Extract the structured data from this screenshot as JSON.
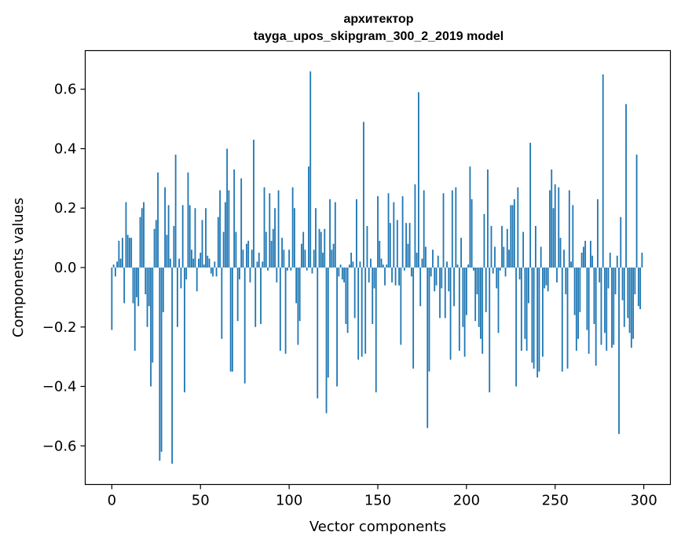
{
  "chart_data": {
    "type": "bar",
    "title_line1": "архитектор",
    "title_line2": "tayga_upos_skipgram_300_2_2019 model",
    "xlabel": "Vector components",
    "ylabel": "Components values",
    "xlim": [
      -15,
      315
    ],
    "ylim": [
      -0.73,
      0.73
    ],
    "grid": false,
    "bar_color": "#1f77b4",
    "xticks": [
      0,
      50,
      100,
      150,
      200,
      250,
      300
    ],
    "xtick_labels": [
      "0",
      "50",
      "100",
      "150",
      "200",
      "250",
      "300"
    ],
    "yticks": [
      -0.6,
      -0.4,
      -0.2,
      0.0,
      0.2,
      0.4,
      0.6
    ],
    "ytick_labels": [
      "−0.6",
      "−0.4",
      "−0.2",
      "0.0",
      "0.2",
      "0.4",
      "0.6"
    ],
    "values": [
      -0.21,
      0.01,
      -0.03,
      0.02,
      0.09,
      0.03,
      0.1,
      -0.12,
      0.22,
      0.11,
      0.1,
      0.1,
      -0.12,
      -0.28,
      -0.1,
      -0.13,
      0.17,
      0.2,
      0.22,
      -0.09,
      -0.2,
      -0.13,
      -0.4,
      -0.32,
      0.13,
      0.16,
      0.32,
      -0.65,
      -0.62,
      -0.15,
      0.27,
      0.11,
      0.21,
      0.03,
      -0.66,
      0.14,
      0.38,
      -0.2,
      0.03,
      -0.07,
      0.21,
      -0.42,
      -0.04,
      0.32,
      0.21,
      0.06,
      0.03,
      0.2,
      -0.08,
      0.03,
      0.05,
      0.16,
      0.01,
      0.2,
      0.04,
      0.03,
      -0.02,
      -0.03,
      0.02,
      -0.03,
      0.17,
      0.26,
      -0.24,
      0.12,
      0.22,
      0.4,
      0.26,
      -0.35,
      -0.35,
      0.33,
      0.12,
      -0.18,
      -0.04,
      0.3,
      0.06,
      -0.39,
      0.08,
      0.09,
      -0.05,
      0.06,
      0.43,
      -0.2,
      0.02,
      0.05,
      -0.19,
      0.02,
      0.27,
      0.12,
      -0.01,
      0.25,
      0.09,
      0.13,
      0.2,
      -0.05,
      0.26,
      -0.28,
      0.1,
      0.06,
      -0.29,
      -0.01,
      0.06,
      -0.01,
      0.27,
      0.2,
      -0.12,
      -0.26,
      -0.18,
      0.08,
      0.12,
      0.06,
      -0.01,
      0.34,
      0.66,
      -0.02,
      0.06,
      0.2,
      -0.44,
      0.13,
      0.12,
      0.05,
      0.13,
      -0.49,
      -0.37,
      0.23,
      0.06,
      0.08,
      0.22,
      -0.4,
      -0.03,
      0.01,
      -0.04,
      -0.05,
      -0.19,
      -0.22,
      0.01,
      0.05,
      0.02,
      -0.17,
      0.23,
      -0.31,
      0.02,
      -0.3,
      0.49,
      -0.29,
      0.14,
      -0.05,
      0.03,
      -0.19,
      -0.07,
      -0.42,
      0.24,
      0.09,
      0.03,
      0.01,
      -0.06,
      0.01,
      0.25,
      0.15,
      -0.05,
      0.22,
      -0.06,
      0.16,
      -0.06,
      -0.26,
      0.24,
      -0.01,
      0.15,
      0.08,
      0.15,
      -0.03,
      -0.34,
      0.28,
      0.05,
      0.59,
      -0.13,
      0.03,
      0.26,
      0.07,
      -0.54,
      -0.35,
      -0.03,
      0.06,
      -0.08,
      -0.06,
      0.04,
      -0.17,
      -0.07,
      0.25,
      -0.17,
      0.02,
      -0.08,
      -0.31,
      0.26,
      -0.13,
      0.27,
      0.01,
      -0.28,
      0.1,
      -0.2,
      -0.3,
      -0.16,
      0.01,
      0.34,
      0.23,
      -0.01,
      -0.18,
      -0.09,
      -0.2,
      -0.24,
      -0.29,
      0.18,
      -0.15,
      0.33,
      -0.42,
      0.14,
      -0.02,
      0.07,
      -0.07,
      -0.22,
      -0.01,
      0.14,
      0.07,
      -0.03,
      0.13,
      0.06,
      0.21,
      0.21,
      0.23,
      -0.4,
      0.27,
      -0.04,
      -0.28,
      0.12,
      -0.24,
      -0.28,
      -0.12,
      0.42,
      -0.32,
      -0.34,
      0.14,
      -0.37,
      -0.35,
      0.07,
      -0.3,
      -0.07,
      -0.06,
      -0.08,
      0.26,
      0.33,
      0.2,
      0.28,
      -0.05,
      0.27,
      0.1,
      -0.35,
      0.06,
      -0.09,
      -0.34,
      0.26,
      0.02,
      0.21,
      -0.16,
      -0.28,
      -0.24,
      -0.15,
      0.05,
      0.07,
      0.09,
      -0.21,
      -0.29,
      0.09,
      0.04,
      -0.19,
      -0.33,
      0.23,
      -0.05,
      -0.26,
      0.65,
      -0.22,
      -0.28,
      -0.07,
      0.05,
      -0.27,
      -0.26,
      -0.09,
      0.04,
      -0.56,
      0.17,
      -0.11,
      -0.2,
      0.55,
      -0.17,
      -0.22,
      -0.27,
      -0.24,
      -0.09,
      0.38,
      -0.13,
      -0.14,
      0.05
    ]
  }
}
